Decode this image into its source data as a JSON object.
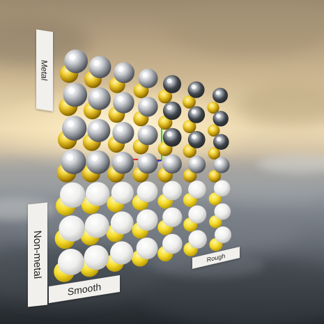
{
  "labels": {
    "metal": "Metal",
    "non_metal": "Non-metal",
    "smooth": "Smooth",
    "rough": "Rough"
  },
  "grid": {
    "roughness_steps": 7,
    "metallic_steps": 7,
    "front_layer": "silver",
    "back_layer": "gold"
  },
  "axes": {
    "x_color": "#e02020",
    "y_color": "#20e020",
    "z_color": "#2040e0"
  },
  "colors": {
    "silver": "#e8e8ea",
    "silver_shadow": "#5a5e64",
    "gold": "#f2d23a",
    "gold_shadow": "#7a6000",
    "label_bg": "#f1f0ec"
  }
}
